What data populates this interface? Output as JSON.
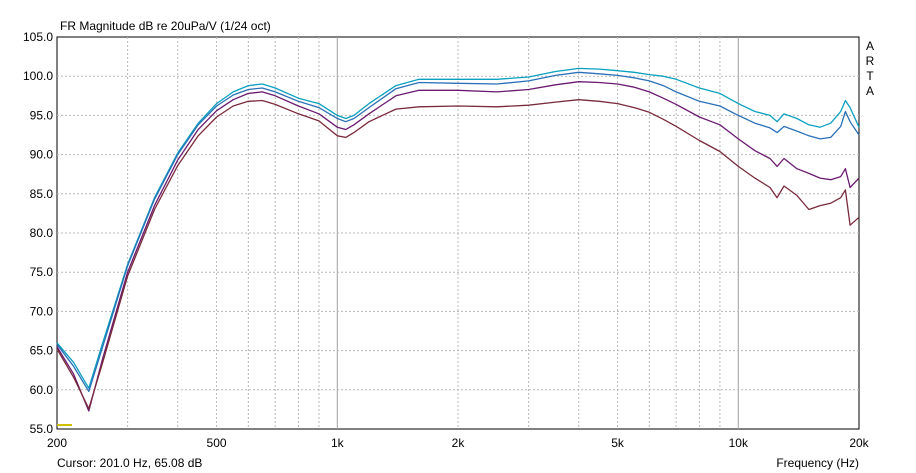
{
  "chart_data": {
    "type": "line",
    "title": "FR Magnitude dB re 20uPa/V (1/24 oct)",
    "xlabel": "Frequency (Hz)",
    "ylabel": "",
    "xscale": "log",
    "xlim": [
      200,
      20000
    ],
    "ylim": [
      55,
      105
    ],
    "grid": true,
    "x_ticks": [
      200,
      500,
      1000,
      2000,
      5000,
      10000,
      20000
    ],
    "x_tick_labels": [
      "200",
      "500",
      "1k",
      "2k",
      "5k",
      "10k",
      "20k"
    ],
    "y_ticks": [
      55,
      60,
      65,
      70,
      75,
      80,
      85,
      90,
      95,
      100,
      105
    ],
    "y_tick_labels": [
      "55.0",
      "60.0",
      "65.0",
      "70.0",
      "75.0",
      "80.0",
      "85.0",
      "90.0",
      "95.0",
      "100.0",
      "105.0"
    ],
    "cursor_text": "Cursor: 201.0 Hz, 65.08 dB",
    "brand_label": [
      "A",
      "R",
      "T",
      "A"
    ],
    "series": [
      {
        "color": "#0aa0c0",
        "x": [
          200,
          220,
          240,
          260,
          300,
          350,
          400,
          450,
          500,
          550,
          600,
          650,
          700,
          800,
          900,
          1000,
          1050,
          1100,
          1200,
          1400,
          1600,
          2000,
          2500,
          3000,
          3500,
          4000,
          4500,
          5000,
          5500,
          6000,
          6500,
          7000,
          8000,
          9000,
          10000,
          11000,
          12000,
          12500,
          13000,
          14000,
          15000,
          16000,
          17000,
          18000,
          18500,
          19000,
          20000
        ],
        "y": [
          66.0,
          63.5,
          60.2,
          66.0,
          76.0,
          84.5,
          90.2,
          94.0,
          96.5,
          98.0,
          98.8,
          99.0,
          98.5,
          97.2,
          96.5,
          95.0,
          94.6,
          95.0,
          96.5,
          98.8,
          99.6,
          99.6,
          99.6,
          99.9,
          100.6,
          101.0,
          100.9,
          100.7,
          100.5,
          100.2,
          100.0,
          99.6,
          98.5,
          97.8,
          96.5,
          95.5,
          95.0,
          94.2,
          95.2,
          94.6,
          93.8,
          93.5,
          94.0,
          95.5,
          96.9,
          96.0,
          93.5
        ]
      },
      {
        "color": "#2a70b8",
        "x": [
          200,
          220,
          240,
          260,
          300,
          350,
          400,
          450,
          500,
          550,
          600,
          650,
          700,
          800,
          900,
          1000,
          1050,
          1100,
          1200,
          1400,
          1600,
          2000,
          2500,
          3000,
          3500,
          4000,
          4500,
          5000,
          5500,
          6000,
          6500,
          7000,
          8000,
          9000,
          10000,
          11000,
          12000,
          12500,
          13000,
          14000,
          15000,
          16000,
          17000,
          18000,
          18500,
          19000,
          20000
        ],
        "y": [
          65.8,
          63.0,
          59.8,
          65.5,
          75.8,
          84.3,
          90.0,
          93.8,
          96.2,
          97.6,
          98.3,
          98.5,
          98.0,
          96.8,
          96.0,
          94.6,
          94.2,
          94.6,
          96.0,
          98.4,
          99.2,
          99.1,
          99.0,
          99.4,
          100.1,
          100.5,
          100.3,
          100.1,
          99.8,
          99.4,
          98.8,
          98.0,
          96.8,
          96.2,
          95.0,
          94.0,
          93.4,
          92.8,
          93.6,
          93.0,
          92.4,
          92.0,
          92.2,
          93.6,
          95.5,
          94.2,
          92.5
        ]
      },
      {
        "color": "#6a1a70",
        "x": [
          200,
          220,
          240,
          260,
          300,
          350,
          400,
          450,
          500,
          550,
          600,
          650,
          700,
          800,
          900,
          1000,
          1050,
          1100,
          1200,
          1400,
          1600,
          2000,
          2500,
          3000,
          3500,
          4000,
          4500,
          5000,
          5500,
          6000,
          6500,
          7000,
          8000,
          9000,
          10000,
          11000,
          12000,
          12500,
          13000,
          14000,
          15000,
          16000,
          17000,
          18000,
          18500,
          19000,
          20000
        ],
        "y": [
          65.5,
          62.0,
          57.3,
          64.0,
          75.0,
          83.5,
          89.3,
          93.2,
          95.6,
          97.0,
          97.8,
          98.0,
          97.5,
          96.2,
          95.2,
          93.5,
          93.2,
          93.8,
          95.2,
          97.5,
          98.2,
          98.2,
          98.0,
          98.3,
          98.9,
          99.3,
          99.2,
          99.0,
          98.6,
          98.0,
          97.2,
          96.4,
          94.8,
          93.8,
          92.0,
          90.5,
          89.5,
          88.5,
          89.5,
          88.2,
          87.6,
          87.0,
          86.8,
          87.2,
          88.2,
          85.8,
          87.0
        ]
      },
      {
        "color": "#7a2a3a",
        "x": [
          200,
          220,
          240,
          260,
          300,
          350,
          400,
          450,
          500,
          550,
          600,
          650,
          700,
          800,
          900,
          1000,
          1050,
          1100,
          1200,
          1400,
          1600,
          2000,
          2500,
          3000,
          3500,
          4000,
          4500,
          5000,
          5500,
          6000,
          6500,
          7000,
          8000,
          9000,
          10000,
          11000,
          12000,
          12500,
          13000,
          14000,
          15000,
          16000,
          17000,
          18000,
          18500,
          19000,
          20000
        ],
        "y": [
          65.2,
          61.6,
          57.6,
          63.5,
          74.5,
          83.0,
          88.6,
          92.4,
          94.8,
          96.2,
          96.8,
          96.9,
          96.4,
          95.2,
          94.3,
          92.4,
          92.2,
          92.8,
          94.2,
          95.8,
          96.1,
          96.2,
          96.1,
          96.3,
          96.7,
          97.0,
          96.8,
          96.5,
          96.0,
          95.4,
          94.5,
          93.6,
          91.8,
          90.4,
          88.5,
          87.0,
          85.8,
          84.5,
          86.0,
          84.8,
          83.0,
          83.5,
          83.8,
          84.5,
          85.5,
          81.0,
          82.0
        ]
      }
    ]
  }
}
